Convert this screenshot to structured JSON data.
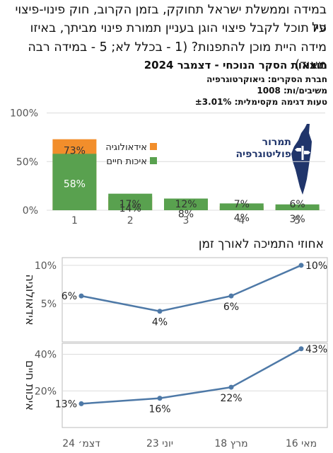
{
  "question": {
    "line1": "במידה וממשלת ישראל תחוקק, בזמן הקרוב, חוק פינוי-פיצוי על",
    "line2": "פיו תוכל לקבל פיצוי הוגן בעניין תמורת פינוי מביתך, באיזו",
    "line3": "מידה היית מוכן להתפנות? (1 - בכלל לא; 5 - במידה רבה מאוד)"
  },
  "survey": {
    "title": "תוצאות הסקר הנוכחי - דצמבר 2024",
    "company": "חברת הסקרים: גיאוקרטוגרפיה",
    "respondents": "משיבים/ות: 1008",
    "margin": "טעות דגימה מקסימלית: ±3.01%"
  },
  "logo": {
    "line1": "תמרור",
    "line2": "פוליטוגרפיה",
    "icon": "israel-map-signpost-icon"
  },
  "trend_title": "אחוזי התמיכה לאורך זמן",
  "colors": {
    "ideology": "#f28e2b",
    "living": "#59a14f",
    "line": "#4e79a7",
    "grid": "#dcdcdc",
    "axis_text": "#555555"
  },
  "chart_data": [
    {
      "type": "bar",
      "stacked": true,
      "categories": [
        "1",
        "2",
        "3",
        "4",
        "5"
      ],
      "series": [
        {
          "name": "איכות חיים",
          "values": [
            58,
            17,
            12,
            7,
            6
          ],
          "labels": [
            "58%",
            "17%",
            "12%",
            "7%",
            "6%"
          ]
        },
        {
          "name": "אידאולוגיה",
          "values": [
            73,
            14,
            8,
            4,
            3
          ],
          "labels": [
            "73%",
            "14%",
            "8%",
            "4%",
            "3%"
          ]
        }
      ],
      "ylim": [
        0,
        131
      ],
      "yticks": [
        0,
        50,
        100
      ],
      "ytick_labels": [
        "0%",
        "50%",
        "100%"
      ],
      "grid": true,
      "legend_position": "middle"
    },
    {
      "type": "line",
      "panel_label": "אידאולוגיה",
      "x": [
        "דצמ׳ 24",
        "יוני 23",
        "מרץ 18",
        "מאי 16"
      ],
      "values": [
        6,
        4,
        6,
        10
      ],
      "labels": [
        "6%",
        "4%",
        "6%",
        "10%"
      ],
      "ylim": [
        0,
        11
      ],
      "yticks": [
        5,
        10
      ],
      "ytick_labels": [
        "5%",
        "10%"
      ],
      "grid": true
    },
    {
      "type": "line",
      "panel_label": "איכות חיים",
      "x": [
        "דצמ׳ 24",
        "יוני 23",
        "מרץ 18",
        "מאי 16"
      ],
      "values": [
        13,
        16,
        22,
        43
      ],
      "labels": [
        "13%",
        "16%",
        "22%",
        "43%"
      ],
      "ylim": [
        0,
        46
      ],
      "yticks": [
        20,
        40
      ],
      "ytick_labels": [
        "20%",
        "40%"
      ],
      "grid": true
    }
  ]
}
